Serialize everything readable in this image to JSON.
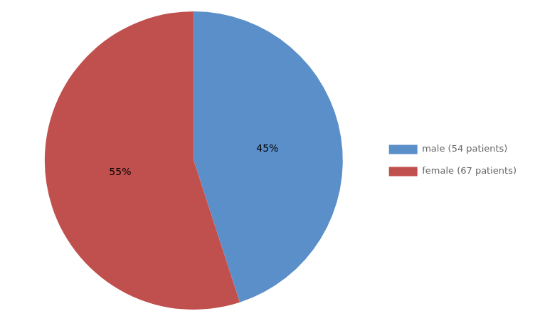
{
  "chart_data": {
    "type": "pie",
    "categories": [
      "male (54 patients)",
      "female (67 patients)"
    ],
    "values": [
      45,
      55
    ],
    "value_labels": [
      "45%",
      "55%"
    ],
    "colors": [
      "#5B8FC9",
      "#C0504D"
    ],
    "data_labels": true,
    "legend": "right"
  }
}
